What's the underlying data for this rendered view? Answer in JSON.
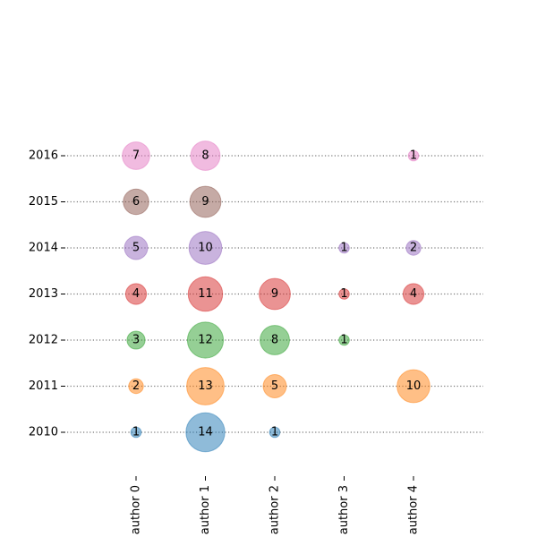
{
  "chart_data": {
    "type": "scatter",
    "title": "",
    "xlabel": "",
    "ylabel": "",
    "categories": [
      "author 0",
      "author 1",
      "author 2",
      "author 3",
      "author 4"
    ],
    "years": [
      "2010",
      "2011",
      "2012",
      "2013",
      "2014",
      "2015",
      "2016"
    ],
    "grid": "dotted horizontal lines at each year",
    "colors": {
      "2010": "#1f77b4",
      "2011": "#ff7f0e",
      "2012": "#2ca02c",
      "2013": "#d62728",
      "2014": "#9467bd",
      "2015": "#8c564b",
      "2016": "#e377c2"
    },
    "points": [
      {
        "author": "author 0",
        "year": "2010",
        "value": 1
      },
      {
        "author": "author 1",
        "year": "2010",
        "value": 14
      },
      {
        "author": "author 2",
        "year": "2010",
        "value": 1
      },
      {
        "author": "author 0",
        "year": "2011",
        "value": 2
      },
      {
        "author": "author 1",
        "year": "2011",
        "value": 13
      },
      {
        "author": "author 2",
        "year": "2011",
        "value": 5
      },
      {
        "author": "author 4",
        "year": "2011",
        "value": 10
      },
      {
        "author": "author 0",
        "year": "2012",
        "value": 3
      },
      {
        "author": "author 1",
        "year": "2012",
        "value": 12
      },
      {
        "author": "author 2",
        "year": "2012",
        "value": 8
      },
      {
        "author": "author 3",
        "year": "2012",
        "value": 1
      },
      {
        "author": "author 0",
        "year": "2013",
        "value": 4
      },
      {
        "author": "author 1",
        "year": "2013",
        "value": 11
      },
      {
        "author": "author 2",
        "year": "2013",
        "value": 9
      },
      {
        "author": "author 3",
        "year": "2013",
        "value": 1
      },
      {
        "author": "author 4",
        "year": "2013",
        "value": 4
      },
      {
        "author": "author 0",
        "year": "2014",
        "value": 5
      },
      {
        "author": "author 1",
        "year": "2014",
        "value": 10
      },
      {
        "author": "author 3",
        "year": "2014",
        "value": 1
      },
      {
        "author": "author 4",
        "year": "2014",
        "value": 2
      },
      {
        "author": "author 0",
        "year": "2015",
        "value": 6
      },
      {
        "author": "author 1",
        "year": "2015",
        "value": 9
      },
      {
        "author": "author 0",
        "year": "2016",
        "value": 7
      },
      {
        "author": "author 1",
        "year": "2016",
        "value": 8
      },
      {
        "author": "author 4",
        "year": "2016",
        "value": 1
      }
    ]
  }
}
